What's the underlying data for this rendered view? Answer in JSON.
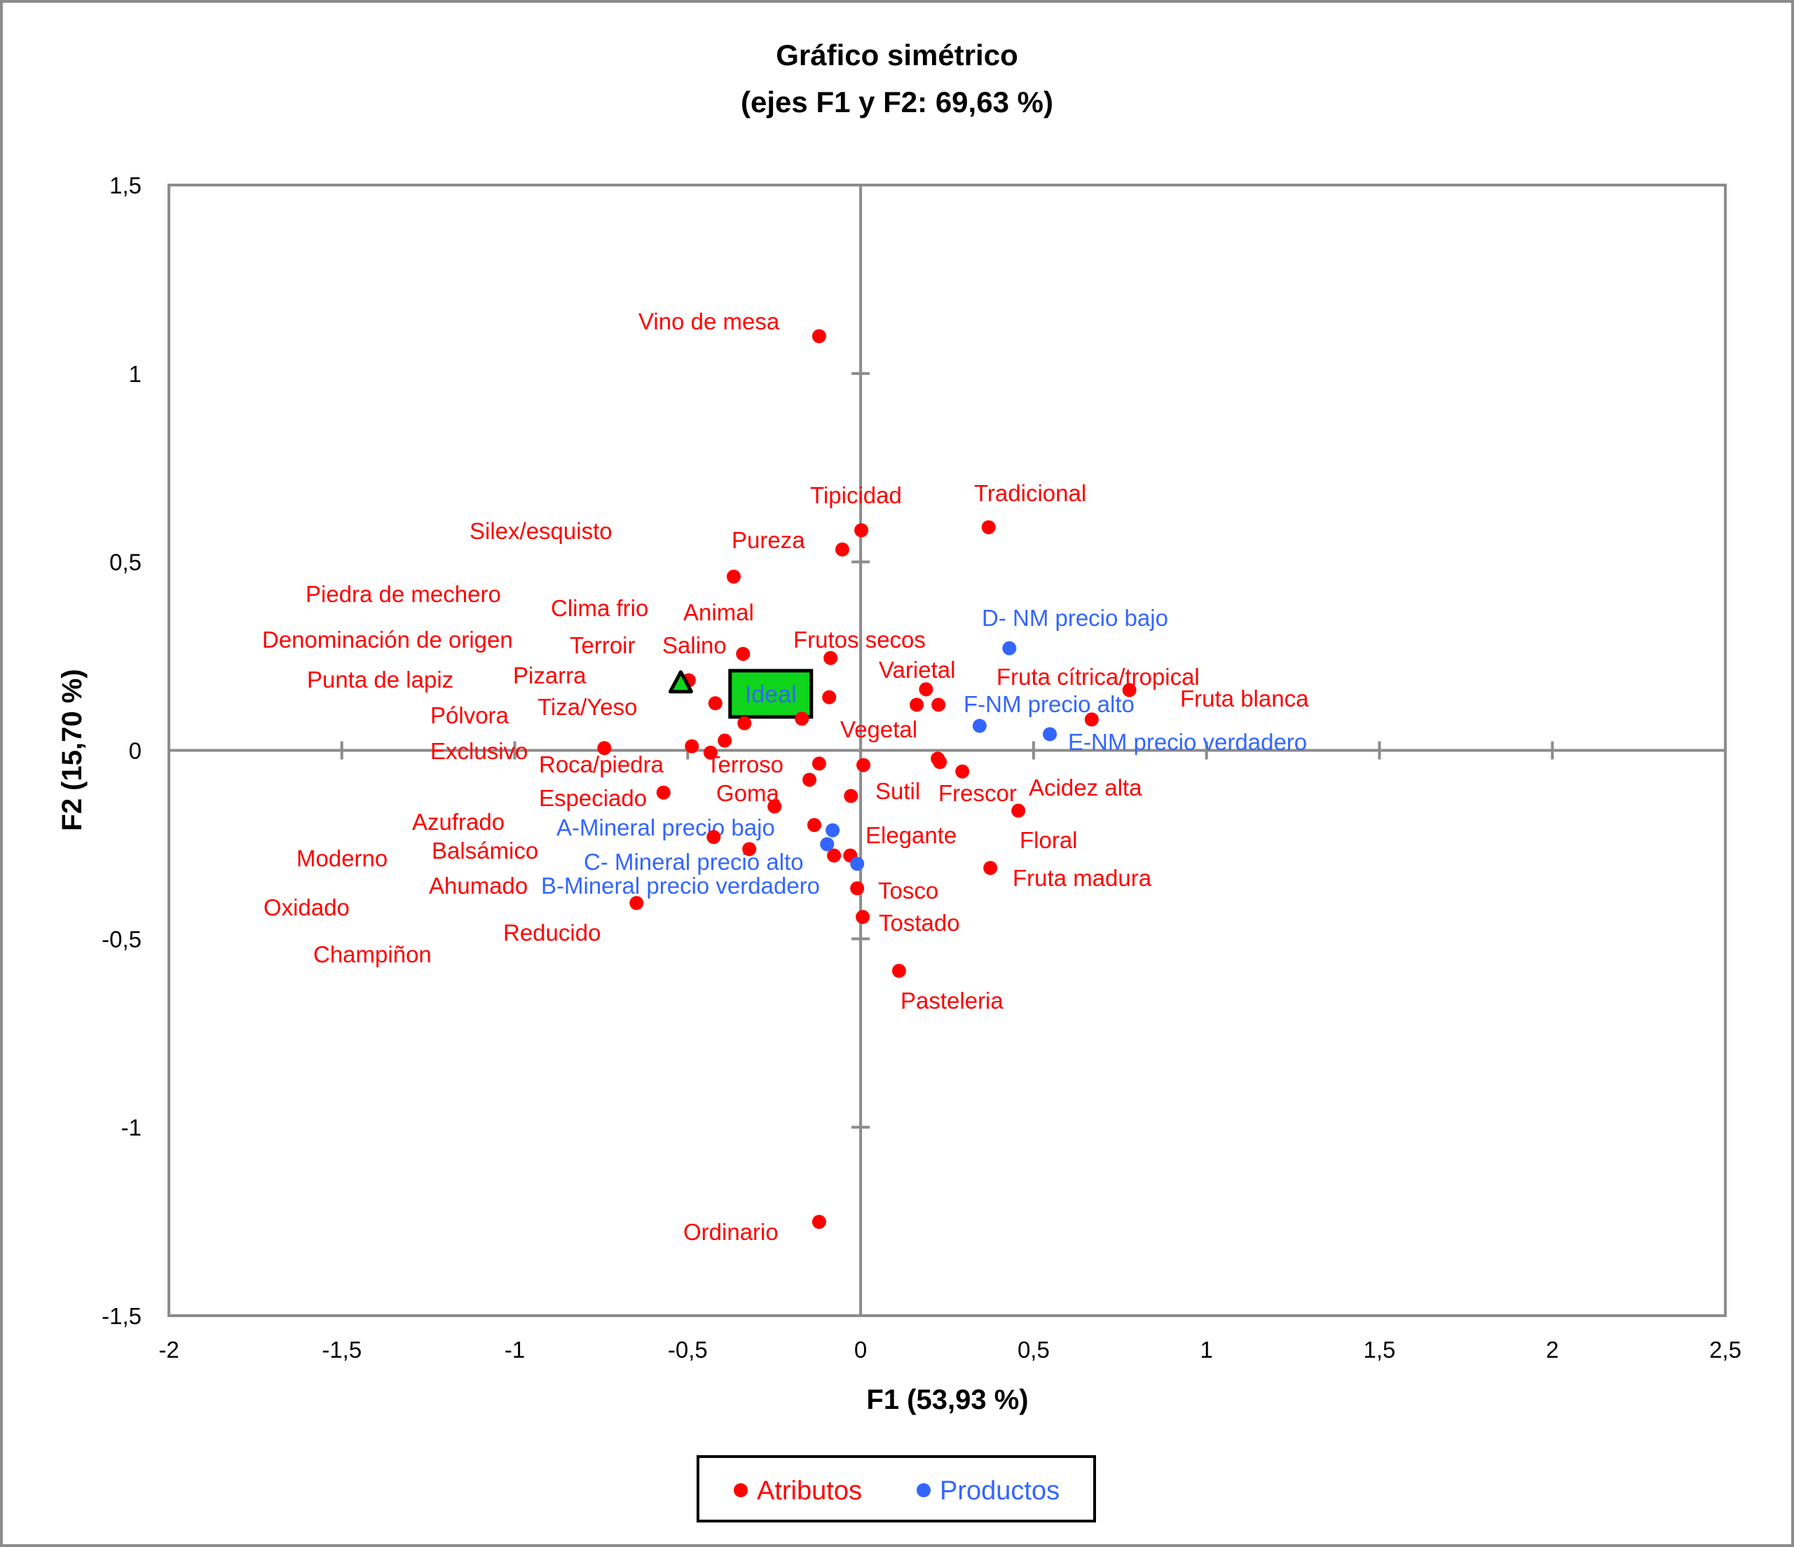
{
  "chart_data": {
    "type": "scatter",
    "title": "Gráfico simétrico",
    "subtitle": "(ejes F1 y F2: 69,63 %)",
    "xlabel": "F1 (53,93 %)",
    "ylabel": "F2 (15,70 %)",
    "xlim": [
      -2,
      2.5
    ],
    "ylim": [
      -1.5,
      1.5
    ],
    "x_ticks": [
      -2,
      -1.5,
      -1,
      -0.5,
      0,
      0.5,
      1,
      1.5,
      2,
      2.5
    ],
    "x_tick_labels": [
      "-2",
      "-1,5",
      "-1",
      "-0,5",
      "0",
      "0,5",
      "1",
      "1,5",
      "2",
      "2,5"
    ],
    "y_ticks": [
      -1.5,
      -1,
      -0.5,
      0,
      0.5,
      1,
      1.5
    ],
    "y_tick_labels": [
      "-1,5",
      "-1",
      "-0,5",
      "0",
      "0,5",
      "1",
      "1,5"
    ],
    "grid": false,
    "legend_placement": "bottom-center",
    "colors": {
      "atributos": "#ff0000",
      "productos": "#3366ff",
      "ideal": "#0fd41c",
      "axis": "#8c8c8c"
    },
    "series": [
      {
        "name": "Atributos",
        "points": [
          {
            "x": -0.12,
            "y": 1.099
          },
          {
            "x": 0.002,
            "y": 0.584
          },
          {
            "x": 0.37,
            "y": 0.592
          },
          {
            "x": -0.053,
            "y": 0.533
          },
          {
            "x": -0.367,
            "y": 0.461
          },
          {
            "x": -0.34,
            "y": 0.256
          },
          {
            "x": -0.087,
            "y": 0.245
          },
          {
            "x": -0.497,
            "y": 0.186
          },
          {
            "x": -0.42,
            "y": 0.125
          },
          {
            "x": -0.336,
            "y": 0.072
          },
          {
            "x": -0.091,
            "y": 0.141
          },
          {
            "x": -0.17,
            "y": 0.084
          },
          {
            "x": -0.393,
            "y": 0.026
          },
          {
            "x": -0.488,
            "y": 0.011
          },
          {
            "x": -0.434,
            "y": -0.006
          },
          {
            "x": -0.741,
            "y": 0.006
          },
          {
            "x": -0.12,
            "y": -0.035
          },
          {
            "x": -0.148,
            "y": -0.078
          },
          {
            "x": 0.008,
            "y": -0.039
          },
          {
            "x": 0.189,
            "y": 0.162
          },
          {
            "x": 0.162,
            "y": 0.121
          },
          {
            "x": 0.225,
            "y": 0.121
          },
          {
            "x": 0.777,
            "y": 0.16
          },
          {
            "x": 0.668,
            "y": 0.082
          },
          {
            "x": 0.223,
            "y": -0.022
          },
          {
            "x": 0.229,
            "y": -0.031
          },
          {
            "x": 0.294,
            "y": -0.056
          },
          {
            "x": 0.456,
            "y": -0.16
          },
          {
            "x": 0.375,
            "y": -0.312
          },
          {
            "x": -0.57,
            "y": -0.112
          },
          {
            "x": -0.028,
            "y": -0.121
          },
          {
            "x": -0.249,
            "y": -0.149
          },
          {
            "x": -0.134,
            "y": -0.198
          },
          {
            "x": -0.425,
            "y": -0.23
          },
          {
            "x": -0.322,
            "y": -0.262
          },
          {
            "x": -0.077,
            "y": -0.279
          },
          {
            "x": -0.03,
            "y": -0.279
          },
          {
            "x": -0.01,
            "y": -0.366
          },
          {
            "x": -0.648,
            "y": -0.405
          },
          {
            "x": 0.006,
            "y": -0.442
          },
          {
            "x": 0.111,
            "y": -0.585
          },
          {
            "x": -0.12,
            "y": -1.251
          }
        ]
      },
      {
        "name": "Productos",
        "points": [
          {
            "x": 0.43,
            "y": 0.271
          },
          {
            "x": 0.344,
            "y": 0.065
          },
          {
            "x": 0.547,
            "y": 0.043
          },
          {
            "x": -0.081,
            "y": -0.212
          },
          {
            "x": -0.097,
            "y": -0.249
          },
          {
            "x": -0.01,
            "y": -0.301
          }
        ]
      }
    ],
    "attribute_labels": [
      "Vino de mesa",
      "Tipicidad",
      "Tradicional",
      "Silex/esquisto",
      "Pureza",
      "Piedra de mechero",
      "Clima frio",
      "Animal",
      "Denominación de origen",
      "Terroir",
      "Salino",
      "Frutos secos",
      "Varietal",
      "Fruta cítrica/tropical",
      "Punta de lapiz",
      "Pizarra",
      "Fruta blanca",
      "Tiza/Yeso",
      "Pólvora",
      "Vegetal",
      "Exclusivo",
      "Roca/piedra",
      "Terroso",
      "Especiado",
      "Goma",
      "Sutil",
      "Frescor",
      "Acidez alta",
      "Azufrado",
      "Elegante",
      "Floral",
      "Balsámico",
      "Moderno",
      "Fruta madura",
      "Ahumado",
      "Tosco",
      "Oxidado",
      "Tostado",
      "Reducido",
      "Champiñon",
      "Pasteleria",
      "Ordinario"
    ],
    "product_labels": [
      "D- NM precio bajo",
      "F-NM precio alto",
      "E-NM precio verdadero",
      "A-Mineral precio bajo",
      "C- Mineral precio alto",
      "B-Mineral precio verdadero"
    ],
    "ideal": {
      "label": "Ideal",
      "x": -0.26,
      "y": 0.15
    },
    "ideal_marker": {
      "x": -0.52,
      "y": 0.18
    },
    "legend": [
      {
        "name": "Atributos"
      },
      {
        "name": "Productos"
      }
    ]
  }
}
